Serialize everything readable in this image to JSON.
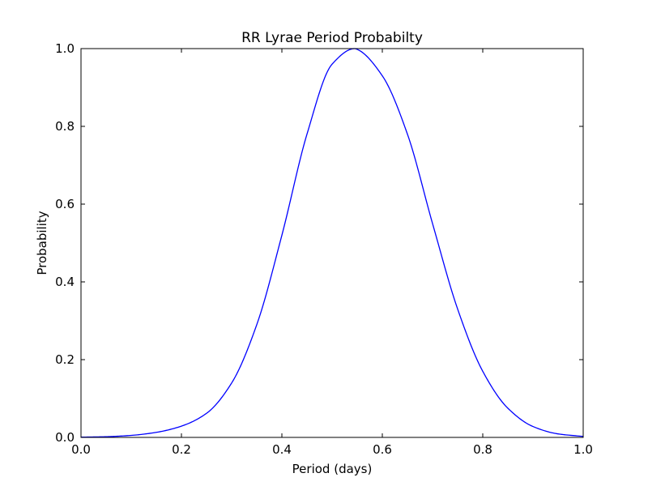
{
  "chart_data": {
    "type": "line",
    "title": "RR Lyrae Period Probabilty",
    "xlabel": "Period (days)",
    "ylabel": "Probability",
    "xlim": [
      0.0,
      1.0
    ],
    "ylim": [
      0.0,
      1.0
    ],
    "xticks": [
      "0.0",
      "0.2",
      "0.4",
      "0.6",
      "0.8",
      "1.0"
    ],
    "yticks": [
      "0.0",
      "0.2",
      "0.4",
      "0.6",
      "0.8",
      "1.0"
    ],
    "grid": false,
    "legend": "none",
    "series": [
      {
        "color": "#0000ff",
        "x": [
          0.0,
          0.05,
          0.1,
          0.15,
          0.2,
          0.25,
          0.3,
          0.35,
          0.4,
          0.45,
          0.5,
          0.545,
          0.55,
          0.6,
          0.65,
          0.7,
          0.75,
          0.8,
          0.85,
          0.9,
          0.95,
          1.0
        ],
        "y": [
          0.0006,
          0.0018,
          0.0052,
          0.013,
          0.029,
          0.062,
          0.14,
          0.29,
          0.52,
          0.78,
          0.96,
          1.0,
          0.998,
          0.93,
          0.78,
          0.55,
          0.33,
          0.17,
          0.075,
          0.028,
          0.009,
          0.0025
        ]
      }
    ]
  }
}
